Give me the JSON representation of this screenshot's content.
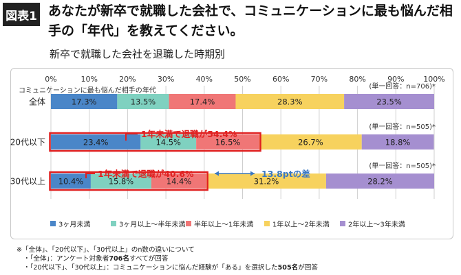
{
  "header": {
    "figure_label": "図表1",
    "title": "あなたが新卒で就職した会社で、コミュニケーションに最も悩んだ相手の「年代」を教えてください。",
    "subtitle": "新卒で就職した会社を退職した時期別"
  },
  "chart_data": {
    "type": "bar",
    "orientation": "horizontal",
    "stacked": true,
    "axis_title": "コミュニケーションに最も悩んだ相手の年代",
    "xlim": [
      0,
      100
    ],
    "x_tick_labels": [
      "0%",
      "10%",
      "20%",
      "30%",
      "40%",
      "50%",
      "60%",
      "70%",
      "80%",
      "90%",
      "100%"
    ],
    "grid": true,
    "legend_position": "bottom",
    "categories": [
      "全体",
      "20代以下",
      "30代以上"
    ],
    "sample_notes": [
      "(単一回答：n=706)*",
      "(単一回答：n=505)*",
      "(単一回答：n=505)*"
    ],
    "series": [
      {
        "name": "3ヶ月未満",
        "color": "#4a86c8",
        "values": [
          17.3,
          23.4,
          10.4
        ],
        "labels": [
          "17.3%",
          "23.4%",
          "10.4%"
        ]
      },
      {
        "name": "3ヶ月以上～半年未満",
        "color": "#7fd1c0",
        "values": [
          13.5,
          14.5,
          15.8
        ],
        "labels": [
          "13.5%",
          "14.5%",
          "15.8%"
        ]
      },
      {
        "name": "半年以上～1年未満",
        "color": "#f07676",
        "values": [
          17.4,
          16.5,
          14.4
        ],
        "labels": [
          "17.4%",
          "16.5%",
          "14.4%"
        ]
      },
      {
        "name": "1年以上～2年未満",
        "color": "#f7d25e",
        "values": [
          28.3,
          26.7,
          31.2
        ],
        "labels": [
          "28.3%",
          "26.7%",
          "31.2%"
        ]
      },
      {
        "name": "2年以上～3年未満",
        "color": "#a58fd0",
        "values": [
          23.5,
          18.8,
          28.2
        ],
        "labels": [
          "23.5%",
          "18.8%",
          "28.2%"
        ]
      }
    ],
    "annotations": {
      "highlight_20s": "1年未満で退職が54.4%",
      "highlight_30s": "1年未満で退職が40.6%",
      "difference": "13.8ptの差"
    },
    "colors": {
      "highlight": "#e02020",
      "difference": "#3a78c3"
    }
  },
  "footnotes": {
    "line1": "※「全体」、「20代以下」、「30代以上」のn数の違いについて",
    "line2_pre": "・「全体」：アンケート対象者",
    "line2_bold": "706名",
    "line2_post": "すべてが回答",
    "line3_pre": "・「20代以下」、「30代以上」：コミュニケーションに悩んだ経験が「ある」を選択した",
    "line3_bold": "505名",
    "line3_post": "が回答"
  }
}
